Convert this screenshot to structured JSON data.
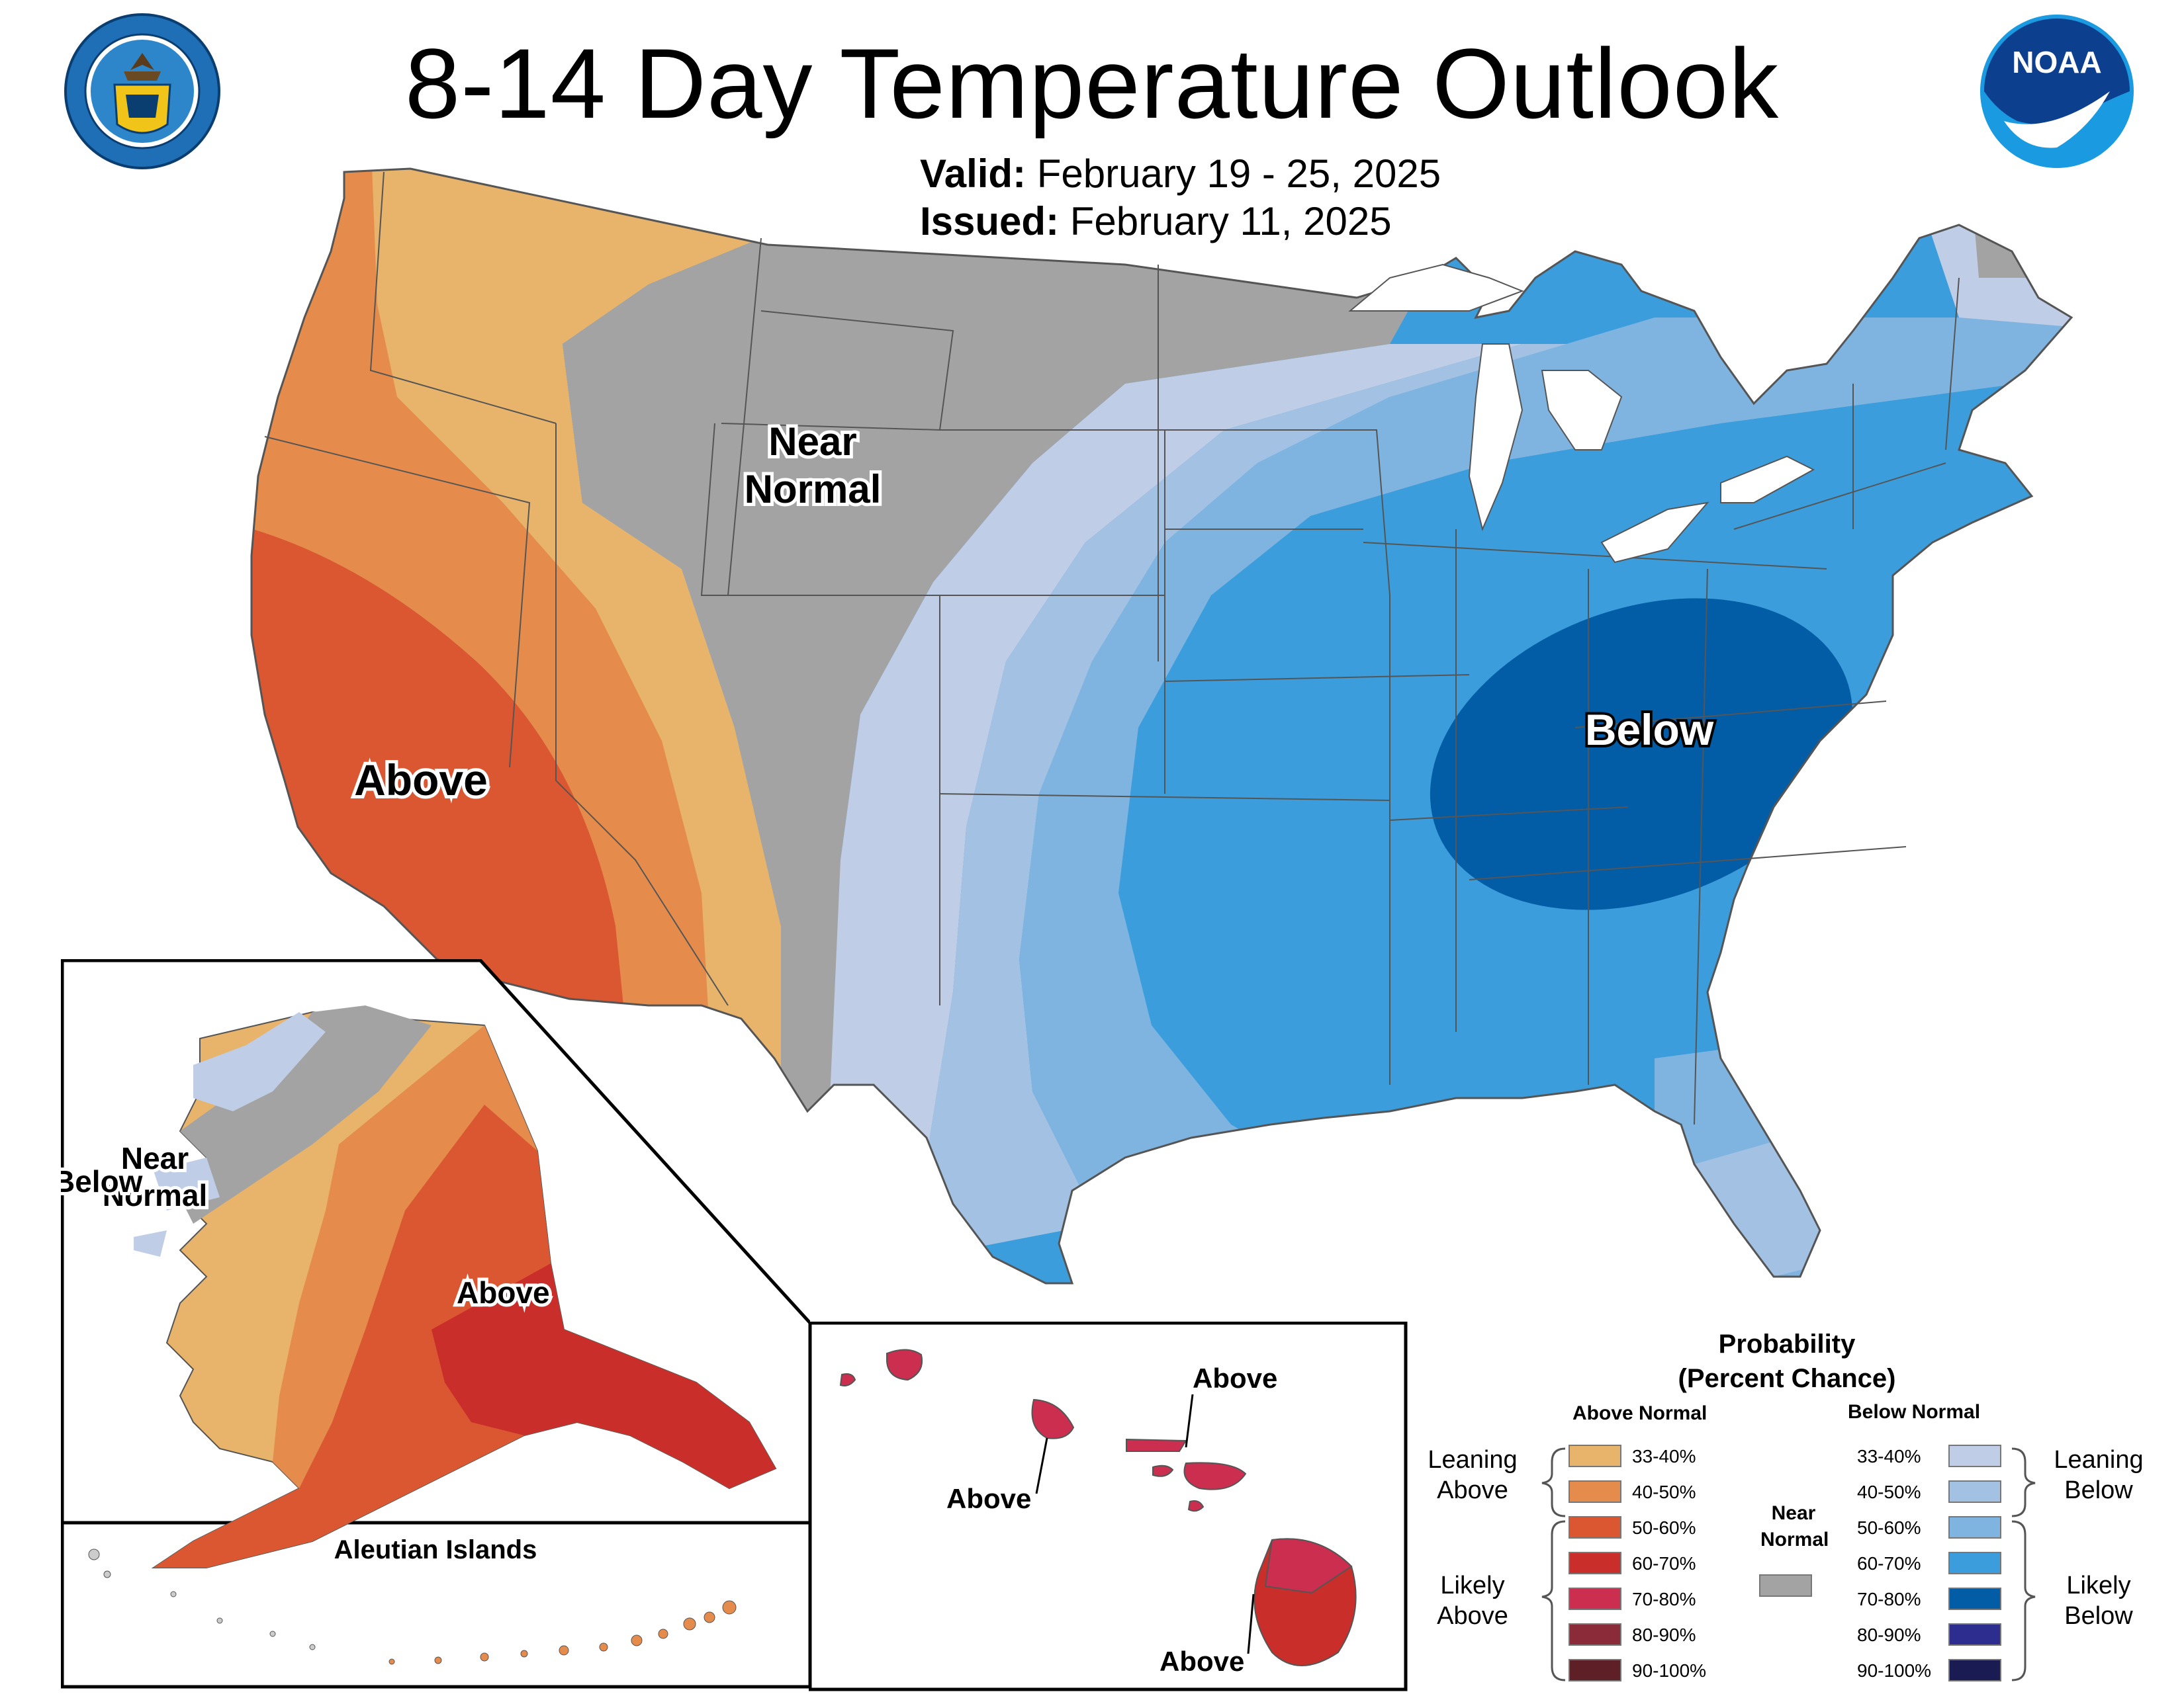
{
  "header": {
    "title": "8-14 Day Temperature Outlook",
    "valid_label": "Valid:",
    "valid_value": "February 19 - 25, 2025",
    "issued_label": "Issued:",
    "issued_value": "February 11, 2025"
  },
  "logos": {
    "left": "department-of-commerce-seal",
    "right": "noaa-logo",
    "noaa_text": "NOAA"
  },
  "colors": {
    "above_33_40": "#e8b36a",
    "above_40_50": "#e58c4c",
    "above_50_60": "#da5732",
    "above_60_70": "#c92e2a",
    "above_70_80": "#cc2e4f",
    "above_80_90": "#8b2b3a",
    "above_90_100": "#5e1f26",
    "near_normal": "#a3a3a3",
    "below_33_40": "#bfcde6",
    "below_40_50": "#a3c2e3",
    "below_50_60": "#7fb4e0",
    "below_60_70": "#3b9ddb",
    "below_70_80": "#035da6",
    "below_80_90": "#2d2d8f",
    "below_90_100": "#1b1b54"
  },
  "map_labels": {
    "conus_near_normal_1": "Near",
    "conus_near_normal_2": "Normal",
    "conus_above": "Above",
    "conus_below": "Below",
    "ak_near_normal_1": "Near",
    "ak_near_normal_2": "Normal",
    "ak_below": "Below",
    "ak_above": "Above",
    "aleutian_title": "Aleutian Islands",
    "hi_above_1": "Above",
    "hi_above_2": "Above",
    "hi_above_3": "Above"
  },
  "legend": {
    "title_line1": "Probability",
    "title_line2": "(Percent Chance)",
    "above_header": "Above Normal",
    "below_header": "Below Normal",
    "near_normal_1": "Near",
    "near_normal_2": "Normal",
    "leaning_above_1": "Leaning",
    "leaning_above_2": "Above",
    "likely_above_1": "Likely",
    "likely_above_2": "Above",
    "leaning_below_1": "Leaning",
    "leaning_below_2": "Below",
    "likely_below_1": "Likely",
    "likely_below_2": "Below",
    "above_ranges": [
      "33-40%",
      "40-50%",
      "50-60%",
      "60-70%",
      "70-80%",
      "80-90%",
      "90-100%"
    ],
    "below_ranges": [
      "33-40%",
      "40-50%",
      "50-60%",
      "60-70%",
      "70-80%",
      "80-90%",
      "90-100%"
    ]
  }
}
